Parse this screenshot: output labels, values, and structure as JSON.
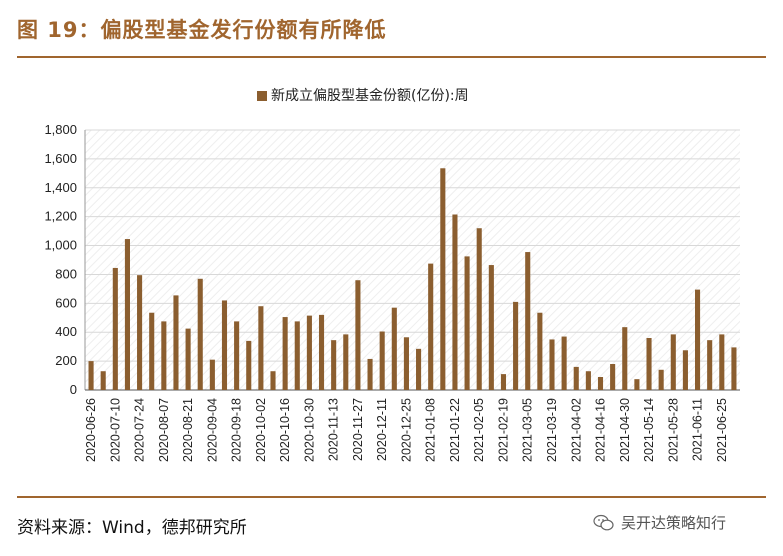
{
  "title": "图 19：偏股型基金发行份额有所降低",
  "source": "资料来源：Wind，德邦研究所",
  "watermark": "吴开达策略知行",
  "colors": {
    "accent": "#a0652e",
    "bar": "#8b5e2f",
    "grid": "#d8d8d8"
  },
  "chart_data": {
    "type": "bar",
    "legend": "新成立偏股型基金份额(亿份):周",
    "legend_position": "top",
    "grid": true,
    "ylim": [
      0,
      1800
    ],
    "yticks": [
      "0",
      "200",
      "400",
      "600",
      "800",
      "1,000",
      "1,200",
      "1,400",
      "1,600",
      "1,800"
    ],
    "xtick_labels": [
      "2020-06-26",
      "2020-07-10",
      "2020-07-24",
      "2020-08-07",
      "2020-08-21",
      "2020-09-04",
      "2020-09-18",
      "2020-10-02",
      "2020-10-16",
      "2020-10-30",
      "2020-11-13",
      "2020-11-27",
      "2020-12-11",
      "2020-12-25",
      "2021-01-08",
      "2021-01-22",
      "2021-02-05",
      "2021-02-19",
      "2021-03-05",
      "2021-03-19",
      "2021-04-02",
      "2021-04-16",
      "2021-04-30",
      "2021-05-14",
      "2021-05-28",
      "2021-06-11",
      "2021-06-25"
    ],
    "categories": [
      "2020-06-26",
      "2020-07-03",
      "2020-07-10",
      "2020-07-17",
      "2020-07-24",
      "2020-07-31",
      "2020-08-07",
      "2020-08-14",
      "2020-08-21",
      "2020-08-28",
      "2020-09-04",
      "2020-09-11",
      "2020-09-18",
      "2020-09-25",
      "2020-10-02",
      "2020-10-09",
      "2020-10-16",
      "2020-10-23",
      "2020-10-30",
      "2020-11-06",
      "2020-11-13",
      "2020-11-20",
      "2020-11-27",
      "2020-12-04",
      "2020-12-11",
      "2020-12-18",
      "2020-12-25",
      "2021-01-01",
      "2021-01-08",
      "2021-01-15",
      "2021-01-22",
      "2021-01-29",
      "2021-02-05",
      "2021-02-12",
      "2021-02-19",
      "2021-02-26",
      "2021-03-05",
      "2021-03-12",
      "2021-03-19",
      "2021-03-26",
      "2021-04-02",
      "2021-04-09",
      "2021-04-16",
      "2021-04-23",
      "2021-04-30",
      "2021-05-07",
      "2021-05-14",
      "2021-05-21",
      "2021-05-28",
      "2021-06-04",
      "2021-06-11",
      "2021-06-18",
      "2021-06-25",
      "2021-07-02"
    ],
    "values": [
      200,
      130,
      845,
      1045,
      795,
      535,
      475,
      655,
      425,
      770,
      210,
      620,
      475,
      340,
      580,
      130,
      505,
      475,
      515,
      520,
      345,
      385,
      760,
      215,
      405,
      570,
      365,
      285,
      875,
      1535,
      1215,
      925,
      1120,
      865,
      110,
      610,
      955,
      535,
      350,
      370,
      160,
      130,
      90,
      180,
      435,
      75,
      360,
      140,
      385,
      275,
      695,
      345,
      385,
      295
    ]
  }
}
